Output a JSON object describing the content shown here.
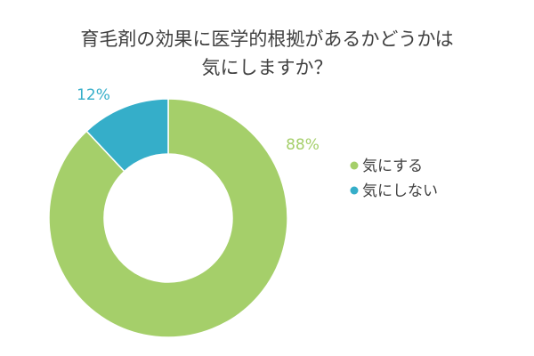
{
  "chart_data": {
    "type": "pie",
    "variant": "donut",
    "title_lines": [
      "育毛剤の効果に医学的根拠があるかどうかは",
      "気にしますか？"
    ],
    "categories": [
      "気にする",
      "気にしない"
    ],
    "values": [
      88,
      12
    ],
    "data_labels": [
      "88%",
      "12%"
    ],
    "colors": [
      "#a5cf6a",
      "#35aec9"
    ],
    "legend_position": "right"
  }
}
